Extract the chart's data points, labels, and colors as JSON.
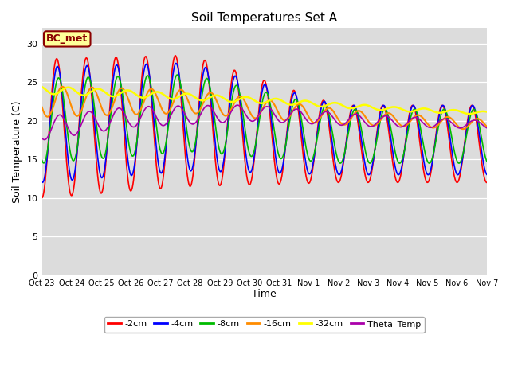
{
  "title": "Soil Temperatures Set A",
  "xlabel": "Time",
  "ylabel": "Soil Temperature (C)",
  "ylim": [
    0,
    32
  ],
  "yticks": [
    0,
    5,
    10,
    15,
    20,
    25,
    30
  ],
  "plot_bg": "#dcdcdc",
  "fig_bg": "#ffffff",
  "annotation_text": "BC_met",
  "annotation_color": "#8B0000",
  "annotation_bg": "#FFFF99",
  "series": {
    "-2cm": {
      "color": "#FF0000",
      "lw": 1.2
    },
    "-4cm": {
      "color": "#0000FF",
      "lw": 1.2
    },
    "-8cm": {
      "color": "#00BB00",
      "lw": 1.2
    },
    "-16cm": {
      "color": "#FF8C00",
      "lw": 1.5
    },
    "-32cm": {
      "color": "#FFFF00",
      "lw": 1.8
    },
    "Theta_Temp": {
      "color": "#AA00AA",
      "lw": 1.2
    }
  },
  "tick_labels": [
    "Oct 23",
    "Oct 24",
    "Oct 25",
    "Oct 26",
    "Oct 27",
    "Oct 28",
    "Oct 29",
    "Oct 30",
    "Oct 31",
    "Nov 1",
    "Nov 2",
    "Nov 3",
    "Nov 4",
    "Nov 5",
    "Nov 6",
    "Nov 7"
  ],
  "n_days": 15,
  "pts_per_day": 48
}
